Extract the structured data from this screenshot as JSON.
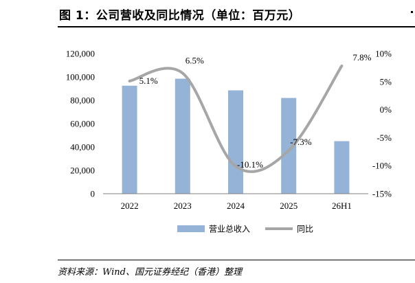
{
  "figure_title": "图 1：公司营收及同比情况（单位：百万元）",
  "source_note": "资料来源：Wind、国元证券经纪（香港）整理",
  "colors": {
    "bar": "#95B3D7",
    "line": "#A6A6A6"
  },
  "chart_data": {
    "type": "bar",
    "categories": [
      "2022",
      "2023",
      "2024",
      "2025",
      "26H1"
    ],
    "series": [
      {
        "name": "营业总收入",
        "type": "bar",
        "axis": "left",
        "values": [
          92500,
          98500,
          88500,
          82000,
          45000
        ]
      },
      {
        "name": "同比",
        "type": "line",
        "axis": "right",
        "smooth": true,
        "values": [
          5.1,
          6.5,
          -10.1,
          -7.3,
          7.8
        ],
        "labels": [
          "5.1%",
          "6.5%",
          "-10.1%",
          "-7.3%",
          "7.8%"
        ]
      }
    ],
    "y_left": {
      "lim": [
        0,
        120000
      ],
      "ticks": [
        "0",
        "20,000",
        "40,000",
        "60,000",
        "80,000",
        "100,000",
        "120,000"
      ]
    },
    "y_right": {
      "lim": [
        -15,
        10
      ],
      "ticks": [
        "-15%",
        "-10%",
        "-5%",
        "0%",
        "5%",
        "10%"
      ]
    },
    "grid": false,
    "legend_position": "bottom"
  }
}
